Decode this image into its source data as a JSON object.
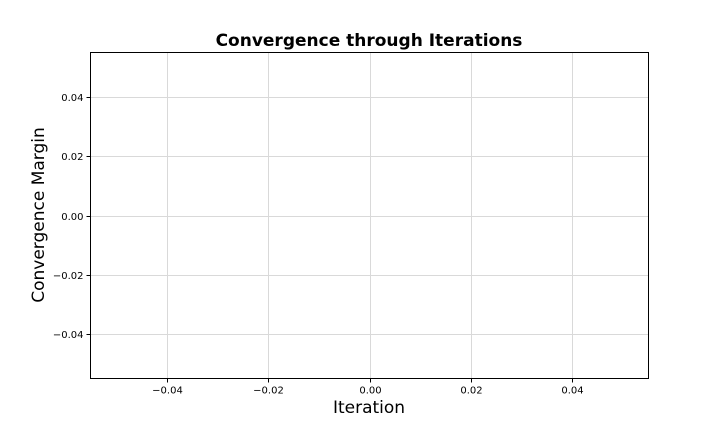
{
  "chart_data": {
    "type": "line",
    "title": "Convergence through Iterations",
    "xlabel": "Iteration",
    "ylabel": "Convergence Margin",
    "xlim": [
      -0.055,
      0.055
    ],
    "ylim": [
      -0.055,
      0.055
    ],
    "x_ticks": [
      -0.04,
      -0.02,
      0.0,
      0.02,
      0.04
    ],
    "x_tick_labels": [
      "−0.04",
      "−0.02",
      "0.00",
      "0.02",
      "0.04"
    ],
    "y_ticks": [
      -0.04,
      -0.02,
      0.0,
      0.02,
      0.04
    ],
    "y_tick_labels": [
      "−0.04",
      "−0.02",
      "0.00",
      "0.02",
      "0.04"
    ],
    "grid": true,
    "series": []
  }
}
